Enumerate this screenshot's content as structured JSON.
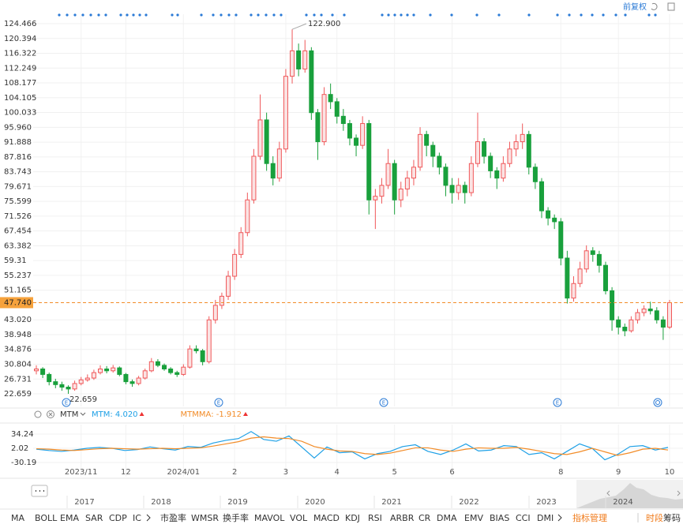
{
  "price_mode": "前复权",
  "event_markers": [
    "E",
    "E",
    "E",
    "E"
  ],
  "chart_data": [
    {
      "type": "candlestick",
      "categories": [
        null,
        null,
        null,
        null,
        null,
        null,
        null,
        "2023/11",
        null,
        null,
        null,
        null,
        null,
        null,
        "12",
        null,
        null,
        null,
        null,
        null,
        null,
        null,
        null,
        "2024/01",
        null,
        null,
        null,
        null,
        null,
        null,
        null,
        "2",
        null,
        null,
        null,
        null,
        null,
        null,
        null,
        "3",
        null,
        null,
        null,
        null,
        null,
        null,
        null,
        "4",
        null,
        null,
        null,
        null,
        null,
        null,
        null,
        null,
        "5",
        null,
        null,
        null,
        null,
        null,
        null,
        null,
        null,
        "6",
        null,
        null,
        null,
        null,
        null,
        null,
        null,
        null,
        null,
        null,
        null,
        null,
        null,
        null,
        null,
        null,
        "8",
        null,
        null,
        null,
        null,
        null,
        null,
        null,
        null,
        "9",
        null,
        null,
        null,
        null,
        null,
        null,
        null,
        "10"
      ],
      "open": [
        29,
        29.5,
        28,
        26,
        25.2,
        24.5,
        24,
        25.5,
        26.5,
        27,
        28.5,
        29.5,
        29,
        29.8,
        28,
        26,
        25.5,
        27,
        29,
        31.5,
        30.5,
        29.5,
        28.5,
        28,
        30,
        35,
        34.5,
        31.5,
        43,
        47,
        49.5,
        55,
        61,
        67,
        76,
        88,
        98,
        86,
        82,
        90,
        110,
        117,
        112,
        117,
        100,
        92,
        105,
        103,
        99,
        97,
        93,
        91,
        97,
        76,
        77,
        80,
        86,
        76,
        79,
        82,
        85,
        94,
        91,
        88,
        85,
        80,
        78,
        80,
        78,
        86,
        92,
        88,
        84,
        82,
        86,
        90,
        92,
        94,
        85,
        81,
        73,
        71,
        70,
        60,
        49,
        53,
        57,
        62,
        61,
        58,
        51,
        43,
        41,
        40,
        43,
        45,
        46,
        45.5,
        43,
        41
      ],
      "high": [
        30.5,
        30,
        28.5,
        26.8,
        26,
        25,
        26.3,
        27.3,
        28,
        29.3,
        30.5,
        30.3,
        30.6,
        30.2,
        28.4,
        26.6,
        27.6,
        29.6,
        32.5,
        32.2,
        31,
        30,
        29,
        30.8,
        36,
        36,
        35,
        44,
        48.5,
        50.5,
        56.5,
        62.5,
        68.5,
        78,
        90,
        105,
        100,
        88,
        92,
        112,
        122.9,
        119,
        120,
        118,
        101,
        107,
        108,
        104,
        101,
        98,
        94,
        99,
        98,
        79,
        82,
        90,
        87,
        81,
        84,
        87,
        96,
        95,
        92,
        89,
        86,
        82,
        82,
        81,
        88,
        100,
        93,
        89,
        85,
        88,
        92,
        94,
        97,
        95,
        86,
        82,
        74,
        72,
        71,
        62,
        55,
        59,
        63.5,
        63,
        62,
        59,
        52,
        44,
        42,
        44,
        46,
        47,
        48,
        46.5,
        44,
        48.5
      ],
      "low": [
        28,
        27,
        25,
        24.2,
        23.5,
        22.659,
        23.5,
        25,
        26,
        26.5,
        28,
        28.3,
        28.5,
        27.5,
        25.3,
        24.6,
        25,
        26.6,
        28.6,
        30,
        29,
        28,
        27.3,
        27.6,
        29.6,
        33.8,
        30.5,
        31,
        42,
        46,
        48.5,
        54,
        60,
        66,
        75,
        87,
        84,
        80,
        81,
        89,
        108,
        110,
        111,
        98,
        87,
        91,
        101,
        97,
        95,
        91,
        88,
        90,
        72,
        68,
        75,
        79,
        72,
        74,
        77,
        80,
        84,
        88,
        85,
        83,
        77,
        75,
        76,
        75,
        77,
        85,
        86,
        82,
        79,
        81,
        85,
        88,
        90,
        83,
        79,
        71,
        69,
        68,
        58,
        47.5,
        48,
        52,
        56,
        59,
        56,
        50,
        40,
        39,
        38.5,
        39.5,
        42,
        44,
        44.5,
        42,
        37.5,
        40.5
      ],
      "close": [
        29.5,
        28,
        26,
        25.2,
        24.5,
        24,
        25.5,
        26.5,
        27,
        28.5,
        29.5,
        29,
        29.8,
        28,
        26,
        25.5,
        27,
        29,
        31.5,
        30.5,
        29.5,
        28.5,
        28,
        30,
        35,
        34.5,
        31.5,
        43,
        47,
        49.5,
        55,
        61,
        67,
        76,
        88,
        98,
        86,
        82,
        90,
        110,
        117,
        112,
        117,
        100,
        92,
        105,
        103,
        99,
        97,
        93,
        91,
        97,
        76,
        77,
        80,
        86,
        76,
        79,
        82,
        85,
        94,
        91,
        88,
        85,
        80,
        78,
        80,
        78,
        86,
        92,
        88,
        84,
        82,
        86,
        90,
        92,
        94,
        85,
        81,
        73,
        71,
        70,
        60,
        49,
        53,
        57,
        62,
        61,
        58,
        51,
        43,
        41,
        40,
        43,
        45,
        46,
        45.5,
        43,
        41,
        47.74
      ],
      "up_color": "#f0585a",
      "down_color": "#19a03c",
      "ylim": [
        19.19,
        127.07
      ],
      "yticks": [
        124.466,
        120.394,
        116.322,
        112.249,
        108.177,
        104.105,
        100.033,
        {
          "value": 95.96,
          "label": "95.960"
        },
        91.888,
        87.816,
        83.743,
        79.671,
        75.599,
        71.526,
        67.454,
        63.382,
        59.31,
        55.237,
        51.165,
        {
          "value": 43.02,
          "label": "43.020"
        },
        38.948,
        34.876,
        30.804,
        26.731,
        22.659
      ],
      "last_price": {
        "value": 47.74,
        "label": "47.740"
      },
      "annotations": [
        "122.900",
        "22.659"
      ],
      "grid": true
    },
    {
      "type": "line",
      "title": "MTM",
      "series": [
        {
          "legend": "MTM: 4.020",
          "color": "#1ea0e6",
          "values": [
            0,
            -3,
            -5,
            -2,
            2,
            4,
            2,
            -3,
            -1,
            5,
            1,
            -2,
            6,
            4,
            14,
            20,
            24,
            40,
            22,
            18,
            30,
            5,
            -20,
            5,
            -8,
            -6,
            -22,
            -10,
            -5,
            6,
            10,
            -5,
            -12,
            -2,
            12,
            -4,
            -2,
            8,
            6,
            -12,
            -8,
            -22,
            -5,
            12,
            2,
            -24,
            -12,
            6,
            8,
            -2,
            4.02
          ]
        },
        {
          "legend": "MTMMA: -1.912",
          "color": "#f28c28",
          "values": [
            1,
            0,
            -2,
            -3,
            -1,
            1,
            2,
            1,
            0,
            1,
            2,
            1,
            2,
            3,
            7,
            12,
            17,
            25,
            28,
            25,
            24,
            18,
            6,
            0,
            -4,
            -5,
            -10,
            -12,
            -9,
            -3,
            3,
            3,
            -2,
            -5,
            0,
            3,
            2,
            2,
            4,
            0,
            -5,
            -10,
            -12,
            -6,
            2,
            -6,
            -14,
            -8,
            0,
            2,
            -1.912
          ]
        }
      ],
      "ylim": [
        -40.9,
        52.1
      ],
      "yticks": [
        34.24,
        2.02,
        -30.19
      ]
    }
  ],
  "navigator": {
    "years": [
      "2017",
      "2018",
      "2019",
      "2020",
      "2021",
      "2022",
      "2023",
      "2024"
    ]
  },
  "indicator_tabs": [
    "MA",
    "BOLL",
    "EMA",
    "SAR",
    "CDP",
    "IC",
    "市盈率",
    "WMSR",
    "换手率",
    "MAVOL",
    "VOL",
    "MACD",
    "KDJ",
    "RSI",
    "ARBR",
    "CR",
    "DMA",
    "EMV",
    "BIAS",
    "CCI",
    "DMI"
  ],
  "manage_label": "指标管理",
  "right_tabs": [
    "时段",
    "筹码"
  ]
}
